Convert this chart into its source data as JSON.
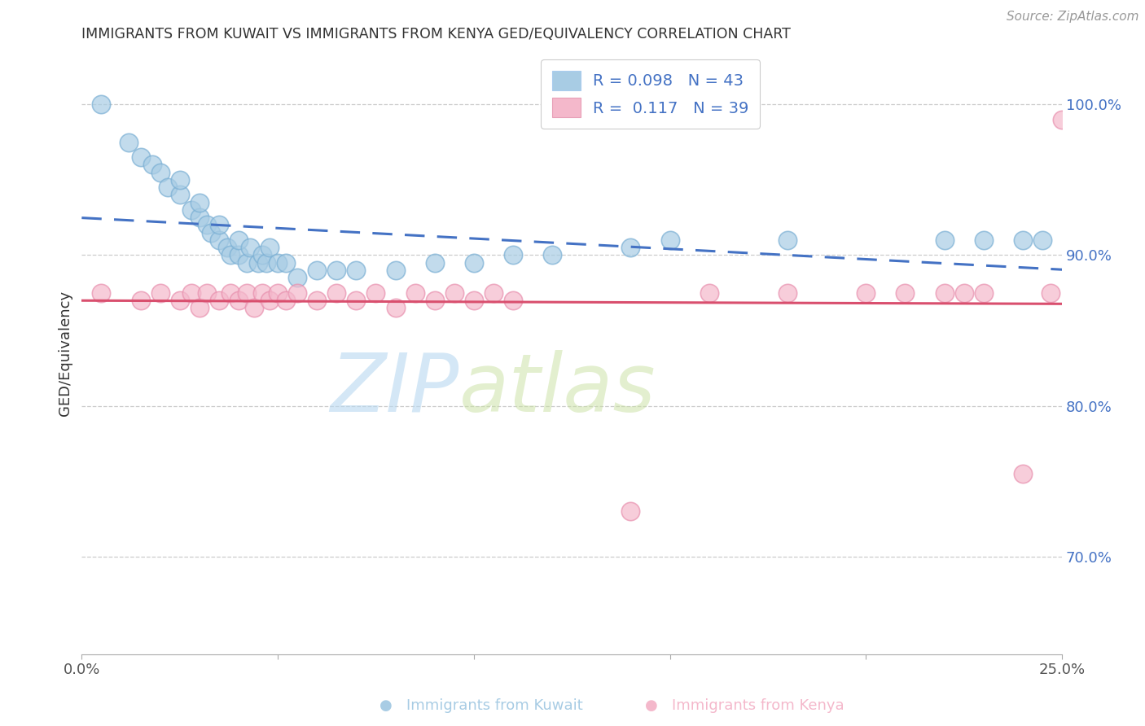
{
  "title": "IMMIGRANTS FROM KUWAIT VS IMMIGRANTS FROM KENYA GED/EQUIVALENCY CORRELATION CHART",
  "source": "Source: ZipAtlas.com",
  "ylabel": "GED/Equivalency",
  "ytick_labels": [
    "70.0%",
    "80.0%",
    "90.0%",
    "100.0%"
  ],
  "ytick_values": [
    0.7,
    0.8,
    0.9,
    1.0
  ],
  "xlim": [
    0.0,
    0.25
  ],
  "ylim": [
    0.635,
    1.035
  ],
  "kuwait_color": "#a8cce4",
  "kenya_color": "#f4b8cb",
  "kuwait_line_color": "#4472c4",
  "kenya_line_color": "#d94f6e",
  "kuwait_R": 0.098,
  "kuwait_N": 43,
  "kenya_R": 0.117,
  "kenya_N": 39,
  "kuwait_x": [
    0.005,
    0.012,
    0.015,
    0.018,
    0.02,
    0.022,
    0.025,
    0.025,
    0.028,
    0.03,
    0.03,
    0.032,
    0.033,
    0.035,
    0.035,
    0.037,
    0.038,
    0.04,
    0.04,
    0.042,
    0.043,
    0.045,
    0.046,
    0.047,
    0.048,
    0.05,
    0.052,
    0.055,
    0.06,
    0.065,
    0.07,
    0.08,
    0.09,
    0.1,
    0.11,
    0.12,
    0.14,
    0.15,
    0.18,
    0.22,
    0.23,
    0.24,
    0.245
  ],
  "kuwait_y": [
    1.0,
    0.975,
    0.965,
    0.96,
    0.955,
    0.945,
    0.94,
    0.95,
    0.93,
    0.925,
    0.935,
    0.92,
    0.915,
    0.91,
    0.92,
    0.905,
    0.9,
    0.9,
    0.91,
    0.895,
    0.905,
    0.895,
    0.9,
    0.895,
    0.905,
    0.895,
    0.895,
    0.885,
    0.89,
    0.89,
    0.89,
    0.89,
    0.895,
    0.895,
    0.9,
    0.9,
    0.905,
    0.91,
    0.91,
    0.91,
    0.91,
    0.91,
    0.91
  ],
  "kenya_x": [
    0.005,
    0.015,
    0.02,
    0.025,
    0.028,
    0.03,
    0.032,
    0.035,
    0.038,
    0.04,
    0.042,
    0.044,
    0.046,
    0.048,
    0.05,
    0.052,
    0.055,
    0.06,
    0.065,
    0.07,
    0.075,
    0.08,
    0.085,
    0.09,
    0.095,
    0.1,
    0.105,
    0.11,
    0.14,
    0.16,
    0.18,
    0.2,
    0.21,
    0.22,
    0.225,
    0.23,
    0.24,
    0.247,
    0.25
  ],
  "kenya_y": [
    0.875,
    0.87,
    0.875,
    0.87,
    0.875,
    0.865,
    0.875,
    0.87,
    0.875,
    0.87,
    0.875,
    0.865,
    0.875,
    0.87,
    0.875,
    0.87,
    0.875,
    0.87,
    0.875,
    0.87,
    0.875,
    0.865,
    0.875,
    0.87,
    0.875,
    0.87,
    0.875,
    0.87,
    0.73,
    0.875,
    0.875,
    0.875,
    0.875,
    0.875,
    0.875,
    0.875,
    0.755,
    0.875,
    0.99
  ],
  "watermark_zip": "ZIP",
  "watermark_atlas": "atlas",
  "background_color": "#ffffff",
  "grid_color": "#cccccc",
  "legend_kuwait_label": "R = 0.098   N = 43",
  "legend_kenya_label": "R =  0.117   N = 39",
  "bottom_legend_kuwait": "Immigrants from Kuwait",
  "bottom_legend_kenya": "Immigrants from Kenya"
}
